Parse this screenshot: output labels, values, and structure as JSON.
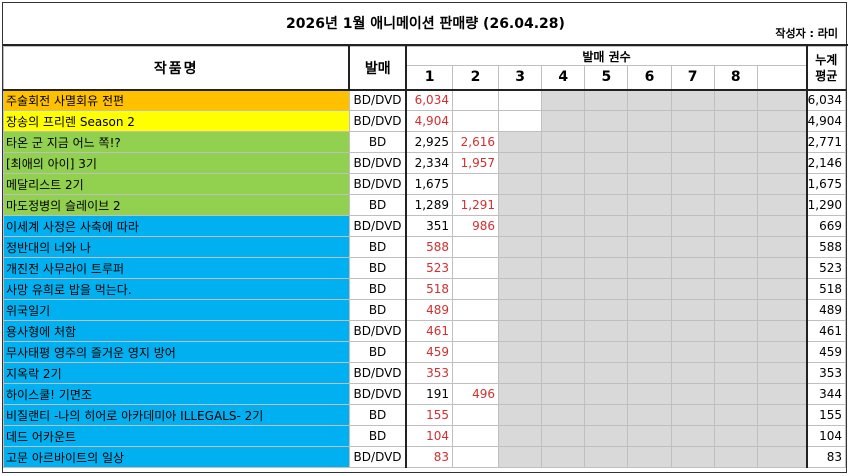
{
  "title": "2026년 1월 애니메이션 판매량 (26.04.28)",
  "author": "작성자 : 라미",
  "headers": {
    "title_col": "작품명",
    "format_col": "발매",
    "volumes_col": "발매 권수",
    "volume_numbers": [
      "1",
      "2",
      "3",
      "4",
      "5",
      "6",
      "7",
      "8"
    ],
    "avg_col_line1": "누계",
    "avg_col_line2": "평균"
  },
  "colors": {
    "orange": "#ffc000",
    "yellow": "#ffff00",
    "green": "#92d050",
    "blue": "#00b0f0",
    "red_text": "#d32f2f",
    "grey_cell": "#d9d9d9"
  },
  "rows": [
    {
      "title": "주술회전 사멸회유 전편",
      "color": "orange",
      "format": "BD/DVD",
      "volumes": [
        "6,034"
      ],
      "avg": "6,034"
    },
    {
      "title": "장송의 프리렌 Season 2",
      "color": "yellow",
      "format": "BD/DVD",
      "volumes": [
        "4,904"
      ],
      "avg": "4,904"
    },
    {
      "title": "타온 군 지금 어느 쪽!?",
      "color": "green",
      "format": "BD",
      "volumes": [
        "2,925",
        "2,616"
      ],
      "avg": "2,771"
    },
    {
      "title": "[최애의 아이] 3기",
      "color": "green",
      "format": "BD/DVD",
      "volumes": [
        "2,334",
        "1,957"
      ],
      "avg": "2,146"
    },
    {
      "title": "메달리스트 2기",
      "color": "green",
      "format": "BD/DVD",
      "volumes": [
        "1,675"
      ],
      "avg": "1,675"
    },
    {
      "title": "마도정병의 슬레이브 2",
      "color": "green",
      "format": "BD",
      "volumes": [
        "1,289",
        "1,291"
      ],
      "avg": "1,290"
    },
    {
      "title": "이세계 사정은 사축에 따라",
      "color": "blue",
      "format": "BD/DVD",
      "volumes": [
        "351",
        "986"
      ],
      "avg": "669"
    },
    {
      "title": "정반대의 너와 나",
      "color": "blue",
      "format": "BD",
      "volumes": [
        "588"
      ],
      "avg": "588"
    },
    {
      "title": "개진전 사무라이 트루퍼",
      "color": "blue",
      "format": "BD",
      "volumes": [
        "523"
      ],
      "avg": "523"
    },
    {
      "title": "사망 유희로 밥을 먹는다.",
      "color": "blue",
      "format": "BD",
      "volumes": [
        "518"
      ],
      "avg": "518"
    },
    {
      "title": "위국일기",
      "color": "blue",
      "format": "BD",
      "volumes": [
        "489"
      ],
      "avg": "489"
    },
    {
      "title": "용사형에 처함",
      "color": "blue",
      "format": "BD/DVD",
      "volumes": [
        "461"
      ],
      "avg": "461"
    },
    {
      "title": "무사태평 영주의 즐거운 영지 방어",
      "color": "blue",
      "format": "BD",
      "volumes": [
        "459"
      ],
      "avg": "459"
    },
    {
      "title": "지옥락 2기",
      "color": "blue",
      "format": "BD/DVD",
      "volumes": [
        "353"
      ],
      "avg": "353"
    },
    {
      "title": "하이스쿨! 기면조",
      "color": "blue",
      "format": "BD/DVD",
      "volumes": [
        "191",
        "496"
      ],
      "avg": "344"
    },
    {
      "title": "비질랜티 -나의 히어로 아카데미아 ILLEGALS- 2기",
      "color": "blue",
      "format": "BD",
      "volumes": [
        "155"
      ],
      "avg": "155"
    },
    {
      "title": "데드 어카운트",
      "color": "blue",
      "format": "BD",
      "volumes": [
        "104"
      ],
      "avg": "104"
    },
    {
      "title": "고문 아르바이트의 일상",
      "color": "blue",
      "format": "BD/DVD",
      "volumes": [
        "83"
      ],
      "avg": "83"
    }
  ]
}
